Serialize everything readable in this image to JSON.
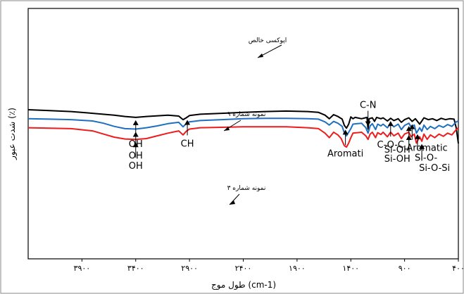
{
  "chart_data": {
    "type": "line",
    "xlabel": "طول موج (cm-1)",
    "ylabel": "شدت عبور (٪)",
    "xlim": [
      4400,
      400
    ],
    "x_ticks": [
      {
        "value": 3900,
        "label": "۳۹۰۰"
      },
      {
        "value": 3400,
        "label": "۳۴۰۰"
      },
      {
        "value": 2900,
        "label": "۲۹۰۰"
      },
      {
        "value": 2400,
        "label": "۲۴۰۰"
      },
      {
        "value": 1900,
        "label": "۱۹۰۰"
      },
      {
        "value": 1400,
        "label": "۱۴۰۰"
      },
      {
        "value": 900,
        "label": "۹۰۰"
      },
      {
        "value": 400,
        "label": "۴۰۰"
      }
    ],
    "series": [
      {
        "name": "اپوکسی خالص",
        "color": "#000000",
        "x": [
          4400,
          4200,
          4000,
          3800,
          3600,
          3500,
          3400,
          3300,
          3100,
          3000,
          2960,
          2930,
          2900,
          2800,
          2600,
          2400,
          2200,
          2000,
          1800,
          1700,
          1640,
          1600,
          1560,
          1520,
          1480,
          1460,
          1440,
          1420,
          1400,
          1380,
          1360,
          1300,
          1250,
          1240,
          1230,
          1200,
          1180,
          1160,
          1120,
          1100,
          1060,
          1030,
          1000,
          960,
          930,
          900,
          860,
          830,
          800,
          760,
          740,
          720,
          680,
          640,
          600,
          560,
          520,
          480,
          440,
          420,
          400
        ],
        "y": [
          10,
          9.8,
          9.6,
          9.2,
          8.8,
          8.5,
          8.3,
          8.5,
          8.8,
          8.6,
          7.8,
          8.2,
          8.7,
          9.0,
          9.2,
          9.4,
          9.6,
          9.7,
          9.6,
          9.4,
          8.8,
          8.0,
          8.9,
          8.5,
          7.9,
          6.5,
          5.9,
          6.8,
          8.4,
          8.0,
          8.3,
          8.0,
          8.3,
          5.7,
          8.0,
          8.2,
          7.4,
          8.3,
          8.0,
          8.2,
          7.5,
          8.1,
          7.6,
          8.0,
          7.2,
          7.8,
          8.2,
          7.4,
          8.0,
          6.8,
          7.5,
          8.2,
          7.8,
          8.0,
          7.6,
          8.1,
          7.8,
          8.0,
          7.9,
          6.0,
          2.5
        ]
      },
      {
        "name": "نمونه شماره ۹",
        "color": "#1f6fc1",
        "x": [
          4400,
          4200,
          4000,
          3800,
          3700,
          3600,
          3500,
          3400,
          3300,
          3200,
          3100,
          3000,
          2960,
          2930,
          2900,
          2800,
          2600,
          2400,
          2200,
          2000,
          1800,
          1700,
          1640,
          1600,
          1560,
          1520,
          1480,
          1460,
          1440,
          1420,
          1400,
          1380,
          1300,
          1260,
          1240,
          1220,
          1200,
          1170,
          1150,
          1120,
          1100,
          1060,
          1030,
          1000,
          960,
          930,
          900,
          860,
          840,
          810,
          790,
          760,
          740,
          720,
          690,
          660,
          620,
          580,
          540,
          500,
          460,
          440,
          420,
          400
        ],
        "y": [
          8.0,
          7.9,
          7.8,
          7.5,
          7.0,
          6.3,
          5.8,
          5.7,
          6.0,
          6.4,
          6.9,
          7.2,
          6.2,
          6.9,
          7.3,
          7.6,
          7.8,
          8.0,
          8.1,
          8.1,
          8.0,
          7.9,
          7.3,
          6.6,
          7.4,
          7.0,
          6.3,
          4.8,
          4.2,
          5.0,
          5.8,
          6.8,
          7.0,
          6.0,
          4.8,
          6.4,
          6.9,
          5.6,
          6.8,
          6.4,
          6.8,
          6.0,
          6.9,
          6.2,
          6.8,
          5.6,
          6.5,
          7.0,
          6.2,
          6.6,
          4.8,
          6.0,
          5.2,
          6.6,
          5.6,
          6.3,
          5.8,
          6.5,
          6.1,
          6.7,
          6.3,
          6.8,
          7.3,
          7.5
        ]
      },
      {
        "name": "نمونه شماره ۳",
        "color": "#ee1c1c",
        "x": [
          4400,
          4200,
          4000,
          3800,
          3700,
          3600,
          3500,
          3400,
          3300,
          3200,
          3100,
          3000,
          2960,
          2930,
          2900,
          2800,
          2600,
          2400,
          2200,
          2000,
          1800,
          1700,
          1640,
          1600,
          1560,
          1520,
          1490,
          1460,
          1440,
          1420,
          1400,
          1380,
          1300,
          1260,
          1240,
          1220,
          1200,
          1170,
          1150,
          1120,
          1100,
          1060,
          1030,
          1000,
          960,
          930,
          900,
          860,
          840,
          810,
          790,
          760,
          740,
          720,
          690,
          660,
          620,
          580,
          540,
          500,
          460,
          440,
          420,
          400
        ],
        "y": [
          6.0,
          5.9,
          5.8,
          5.3,
          4.6,
          3.9,
          3.5,
          3.4,
          3.6,
          4.2,
          4.8,
          5.3,
          4.4,
          5.2,
          5.7,
          6.0,
          6.1,
          6.2,
          6.2,
          6.2,
          6.0,
          5.8,
          4.8,
          3.8,
          5.0,
          4.4,
          3.6,
          2.0,
          1.7,
          2.6,
          3.8,
          4.8,
          5.0,
          4.2,
          3.4,
          4.6,
          5.0,
          3.8,
          4.9,
          4.5,
          5.0,
          4.0,
          5.0,
          4.2,
          4.8,
          3.6,
          4.6,
          5.0,
          4.0,
          4.6,
          2.6,
          4.0,
          3.0,
          4.6,
          3.4,
          4.4,
          3.8,
          4.6,
          4.1,
          4.8,
          4.4,
          5.0,
          5.6,
          6.0
        ]
      }
    ],
    "annotations": [
      {
        "label": "OH",
        "x": 3400,
        "series": 0
      },
      {
        "label": "CH",
        "x": 2920,
        "series": 0
      },
      {
        "label": "Aromati",
        "x": 1450,
        "series": 0
      },
      {
        "label": "C-N",
        "x": 1240,
        "series": 0
      },
      {
        "label": "C-O-C",
        "x": 1030,
        "series": 0
      },
      {
        "label": "Aromatic",
        "x": 830,
        "series": 0
      },
      {
        "label": "OH",
        "x": 3400,
        "series": 1
      },
      {
        "label": "Si-OH",
        "x": 860,
        "series": 1
      },
      {
        "label": "Si-O-",
        "x": 780,
        "series": 1
      },
      {
        "label": "OH",
        "x": 3400,
        "series": 2
      },
      {
        "label": "Si-OH",
        "x": 860,
        "series": 2
      },
      {
        "label": "Si-O-Si",
        "x": 740,
        "series": 2
      }
    ]
  }
}
